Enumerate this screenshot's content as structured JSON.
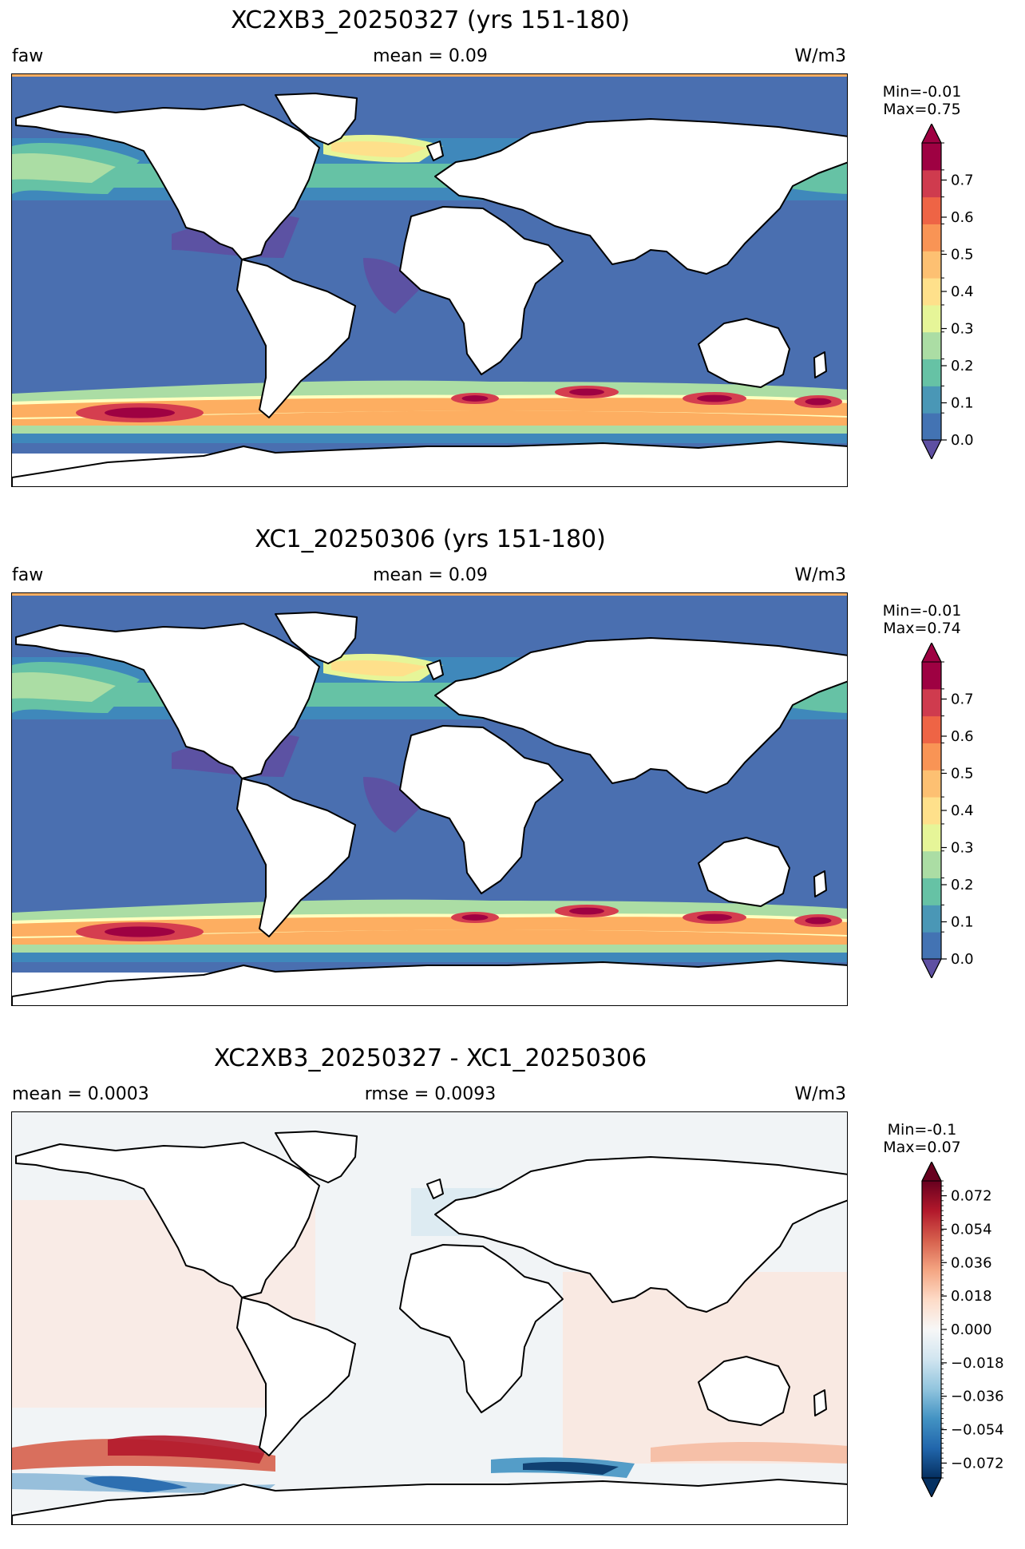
{
  "panels": [
    {
      "title": "XC2XB3_20250327 (yrs 151-180)",
      "left_label": "faw",
      "center_label": "mean = 0.09",
      "units": "W/m3",
      "min_text": "Min=-0.01",
      "max_text": "Max=0.75",
      "colormap": "Spectral_r",
      "colorbar_ticks": [
        "0.0",
        "0.1",
        "0.2",
        "0.3",
        "0.4",
        "0.5",
        "0.6",
        "0.7"
      ]
    },
    {
      "title": "XC1_20250306 (yrs 151-180)",
      "left_label": "faw",
      "center_label": "mean = 0.09",
      "units": "W/m3",
      "min_text": "Min=-0.01",
      "max_text": "Max=0.74",
      "colormap": "Spectral_r",
      "colorbar_ticks": [
        "0.0",
        "0.1",
        "0.2",
        "0.3",
        "0.4",
        "0.5",
        "0.6",
        "0.7"
      ]
    },
    {
      "title": "XC2XB3_20250327 - XC1_20250306",
      "left_label": "mean = 0.0003",
      "center_label": "rmse = 0.0093",
      "units": "W/m3",
      "min_text": "Min=-0.1",
      "max_text": "Max=0.07",
      "colormap": "RdBu_r",
      "colorbar_ticks": [
        "−0.072",
        "−0.054",
        "−0.036",
        "−0.018",
        "0.000",
        "0.018",
        "0.036",
        "0.054",
        "0.072"
      ]
    }
  ]
}
